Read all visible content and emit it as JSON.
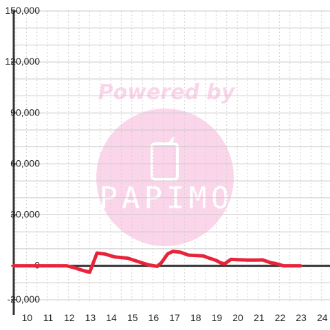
{
  "watermark": {
    "caption": "Powered by",
    "logo": "PAPIMO",
    "color": "#fbd6ea",
    "logo_text_color": "#ffffff"
  },
  "colors": {
    "line": "#e8243a",
    "axis": "#333333",
    "grid_major": "#c8c8c8",
    "grid_minor": "#cfcfcf"
  },
  "chart_data": {
    "type": "line",
    "title": "",
    "xlabel": "",
    "ylabel": "",
    "xlim": [
      9.4,
      24.4
    ],
    "ylim": [
      -22000,
      150000
    ],
    "x_ticks": [
      10,
      11,
      12,
      13,
      14,
      15,
      16,
      17,
      18,
      19,
      20,
      21,
      22,
      23,
      24
    ],
    "y_ticks": [
      -20000,
      0,
      30000,
      60000,
      90000,
      120000,
      150000
    ],
    "y_tick_labels": [
      "-20,000",
      "0",
      "30,000",
      "60,000",
      "90,000",
      "120,000",
      "150,000"
    ],
    "grid": "on",
    "legend": "none",
    "series": [
      {
        "x": [
          9.4,
          10,
          11,
          11.9,
          12.3,
          12.7,
          13.0,
          13.35,
          13.7,
          14.2,
          14.8,
          15.3,
          15.8,
          16.2,
          16.4,
          16.7,
          16.95,
          17.3,
          17.7,
          18.1,
          18.4,
          18.7,
          19.0,
          19.2,
          19.4,
          19.7,
          20.0,
          20.5,
          20.9,
          21.2,
          21.6,
          21.8,
          22.2,
          22.6,
          23.0
        ],
        "y": [
          0,
          0,
          0,
          0,
          -1200,
          -2800,
          -3800,
          7500,
          7000,
          5200,
          4500,
          2500,
          500,
          -300,
          1800,
          7000,
          8500,
          8000,
          6300,
          6000,
          5800,
          4400,
          3200,
          1800,
          1200,
          3800,
          3600,
          3400,
          3400,
          3500,
          1800,
          1400,
          0,
          0,
          0
        ]
      }
    ]
  }
}
